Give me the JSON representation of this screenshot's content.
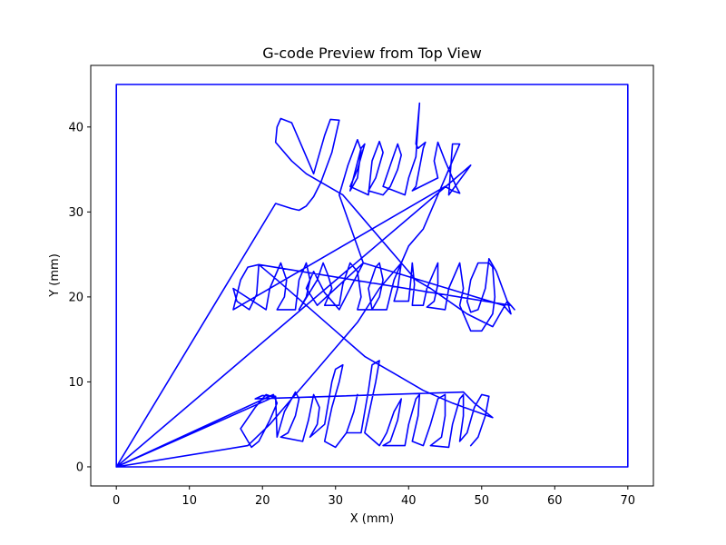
{
  "chart_data": {
    "type": "line",
    "title": "G-code Preview from Top View",
    "xlabel": "X (mm)",
    "ylabel": "Y (mm)",
    "xlim": [
      -3.5,
      73.5
    ],
    "ylim": [
      -2.25,
      47.25
    ],
    "xticks": [
      0,
      10,
      20,
      30,
      40,
      50,
      60,
      70
    ],
    "yticks": [
      0,
      10,
      20,
      30,
      40
    ],
    "grid": false,
    "colors": {
      "line": "#0000ff",
      "frame": "#000000"
    },
    "series": [
      {
        "points": [
          [
            0,
            0
          ],
          [
            0,
            45
          ],
          [
            70,
            45
          ],
          [
            70,
            0
          ],
          [
            0,
            0
          ],
          [
            21.5,
            8.2
          ],
          [
            20.5,
            8.5
          ],
          [
            19,
            7
          ],
          [
            17,
            4.5
          ],
          [
            18.5,
            2.3
          ],
          [
            19.5,
            3
          ],
          [
            21,
            5.5
          ],
          [
            22,
            7.5
          ],
          [
            21.5,
            8.5
          ],
          [
            0,
            0
          ],
          [
            48.5,
            35.5
          ],
          [
            45.5,
            32
          ],
          [
            46,
            38
          ],
          [
            47,
            38
          ],
          [
            45,
            34
          ],
          [
            42,
            28
          ],
          [
            40,
            26
          ],
          [
            39,
            24
          ],
          [
            36,
            21
          ],
          [
            33,
            17
          ],
          [
            30,
            14
          ],
          [
            27,
            11
          ],
          [
            24,
            8
          ],
          [
            21,
            5
          ],
          [
            18,
            2.5
          ],
          [
            0,
            0
          ],
          [
            21.8,
            31
          ],
          [
            24,
            30.4
          ],
          [
            25,
            30.2
          ],
          [
            26,
            30.7
          ],
          [
            27,
            31.8
          ],
          [
            28,
            33.5
          ],
          [
            29.5,
            37
          ],
          [
            30.5,
            40.8
          ],
          [
            29.3,
            40.9
          ],
          [
            28.5,
            39
          ],
          [
            27,
            34.5
          ],
          [
            26.5,
            35.5
          ],
          [
            25,
            38.5
          ],
          [
            24,
            40.5
          ],
          [
            22.5,
            41
          ],
          [
            22,
            40
          ],
          [
            21.8,
            38.2
          ],
          [
            24,
            36
          ],
          [
            26,
            34.5
          ],
          [
            31,
            32
          ],
          [
            33,
            30
          ],
          [
            35,
            28
          ],
          [
            37,
            26
          ],
          [
            39,
            24
          ],
          [
            41,
            22
          ],
          [
            43,
            21
          ],
          [
            48,
            18
          ],
          [
            51.5,
            16.5
          ],
          [
            53.5,
            19.5
          ],
          [
            54,
            18
          ],
          [
            53,
            19
          ],
          [
            33.8,
            24
          ],
          [
            30.5,
            18.5
          ],
          [
            28.5,
            20.5
          ],
          [
            27,
            23
          ],
          [
            26,
            21
          ],
          [
            27.5,
            19
          ],
          [
            33.8,
            24
          ],
          [
            30.5,
            32
          ],
          [
            31.7,
            35.5
          ],
          [
            33,
            38.5
          ],
          [
            33.5,
            37.3
          ],
          [
            33,
            34
          ],
          [
            32,
            32.5
          ],
          [
            33.5,
            37.5
          ],
          [
            34,
            38
          ],
          [
            33,
            35
          ],
          [
            32,
            33
          ],
          [
            34.5,
            32
          ],
          [
            35,
            36
          ],
          [
            36,
            38.3
          ],
          [
            36.5,
            37
          ],
          [
            35.5,
            34
          ],
          [
            34.5,
            32.5
          ],
          [
            36.5,
            32
          ],
          [
            37.5,
            33
          ],
          [
            38.5,
            35
          ],
          [
            39,
            36.7
          ],
          [
            38.5,
            38
          ],
          [
            37.5,
            35.5
          ],
          [
            36.5,
            33
          ],
          [
            39.5,
            32
          ],
          [
            40,
            34
          ],
          [
            41,
            36.5
          ],
          [
            41.5,
            42.8
          ],
          [
            41,
            38
          ],
          [
            41.3,
            37.5
          ],
          [
            42.3,
            38.2
          ],
          [
            42,
            37.5
          ],
          [
            41,
            33
          ],
          [
            40.5,
            32.5
          ],
          [
            44,
            34
          ],
          [
            43.5,
            36
          ],
          [
            44,
            38.2
          ],
          [
            45,
            36
          ],
          [
            46,
            34
          ],
          [
            46.5,
            33
          ],
          [
            47,
            32.2
          ],
          [
            46,
            32.5
          ],
          [
            45,
            33
          ],
          [
            16,
            18.5
          ],
          [
            17,
            22
          ],
          [
            18,
            23.5
          ],
          [
            19.5,
            23.8
          ],
          [
            19.2,
            20.3
          ],
          [
            18.2,
            18.5
          ],
          [
            16.5,
            19.5
          ],
          [
            16,
            21
          ],
          [
            20.5,
            18.5
          ],
          [
            21,
            21
          ],
          [
            22.5,
            24
          ],
          [
            23.3,
            22
          ],
          [
            23,
            20
          ],
          [
            22,
            18.5
          ],
          [
            24.5,
            18.5
          ],
          [
            25,
            22
          ],
          [
            26,
            24
          ],
          [
            26.5,
            22
          ],
          [
            26,
            20
          ],
          [
            25,
            18.5
          ],
          [
            27.5,
            22
          ],
          [
            28.3,
            24
          ],
          [
            29,
            22.5
          ],
          [
            29.5,
            21
          ],
          [
            28.5,
            19
          ],
          [
            30.5,
            19
          ],
          [
            31,
            21.5
          ],
          [
            32,
            24
          ],
          [
            33,
            23
          ],
          [
            33.5,
            20
          ],
          [
            33,
            18.5
          ],
          [
            35,
            18.5
          ],
          [
            34.5,
            21
          ],
          [
            35.5,
            23.5
          ],
          [
            36,
            24
          ],
          [
            36.5,
            22
          ],
          [
            36,
            20
          ],
          [
            35,
            18.5
          ],
          [
            37,
            18.5
          ],
          [
            38,
            22
          ],
          [
            39,
            24
          ],
          [
            38.5,
            21
          ],
          [
            38,
            19.5
          ],
          [
            40,
            19.5
          ],
          [
            40.3,
            22
          ],
          [
            40.5,
            24
          ],
          [
            40.8,
            21.5
          ],
          [
            40.5,
            19
          ],
          [
            42,
            19
          ],
          [
            42.5,
            21
          ],
          [
            43.5,
            23
          ],
          [
            44,
            24
          ],
          [
            44,
            21.5
          ],
          [
            43.5,
            19.5
          ],
          [
            42.5,
            18.8
          ],
          [
            45,
            18.5
          ],
          [
            45.5,
            21
          ],
          [
            47,
            24
          ],
          [
            47.5,
            21
          ],
          [
            47,
            19
          ],
          [
            48.5,
            16
          ],
          [
            50,
            16
          ],
          [
            51.5,
            18
          ],
          [
            51.8,
            20
          ],
          [
            51.5,
            23.5
          ],
          [
            51,
            24
          ],
          [
            49.5,
            24
          ],
          [
            48.5,
            22
          ],
          [
            48,
            19.5
          ],
          [
            48.5,
            18.2
          ],
          [
            49.5,
            18.5
          ],
          [
            50.5,
            21
          ],
          [
            51,
            24.5
          ],
          [
            52,
            23
          ],
          [
            53.5,
            19.5
          ],
          [
            54.5,
            18.5
          ],
          [
            54,
            19
          ],
          [
            19.5,
            23.8
          ],
          [
            22,
            22
          ],
          [
            26,
            19
          ],
          [
            30,
            16
          ],
          [
            34,
            13
          ],
          [
            38,
            11
          ],
          [
            42,
            9
          ],
          [
            46,
            7.5
          ],
          [
            51.5,
            5.8
          ],
          [
            49,
            7.5
          ],
          [
            47.5,
            8.8
          ],
          [
            19,
            8
          ],
          [
            20,
            8.4
          ],
          [
            21.8,
            8.3
          ],
          [
            22,
            3.5
          ],
          [
            23,
            6.5
          ],
          [
            24.5,
            8.8
          ],
          [
            25,
            8
          ],
          [
            24.5,
            6
          ],
          [
            23.5,
            4
          ],
          [
            22.5,
            3.5
          ],
          [
            25.5,
            3
          ],
          [
            26.3,
            5.5
          ],
          [
            27,
            8.5
          ],
          [
            27.8,
            7
          ],
          [
            27.5,
            5
          ],
          [
            26.5,
            3.5
          ],
          [
            28.5,
            5
          ],
          [
            29.5,
            10
          ],
          [
            30,
            11.5
          ],
          [
            31,
            12
          ],
          [
            30.5,
            10
          ],
          [
            29.5,
            7
          ],
          [
            28.5,
            3
          ],
          [
            30,
            2.3
          ],
          [
            31.5,
            4
          ],
          [
            32.5,
            6.5
          ],
          [
            33,
            8.5
          ],
          [
            32.5,
            6.5
          ],
          [
            31.5,
            4
          ],
          [
            33.5,
            4
          ],
          [
            34.5,
            9
          ],
          [
            35,
            12
          ],
          [
            36,
            12.5
          ],
          [
            35.5,
            10
          ],
          [
            34.5,
            6
          ],
          [
            34,
            4
          ],
          [
            36,
            2.5
          ],
          [
            37,
            4
          ],
          [
            38,
            6.5
          ],
          [
            39,
            8
          ],
          [
            38.5,
            5.5
          ],
          [
            37.5,
            3
          ],
          [
            36.5,
            2.5
          ],
          [
            39.5,
            2.5
          ],
          [
            40,
            5
          ],
          [
            41,
            8
          ],
          [
            41.5,
            8.5
          ],
          [
            41.3,
            6
          ],
          [
            40.5,
            3
          ],
          [
            42,
            2.5
          ],
          [
            43,
            5
          ],
          [
            44,
            8
          ],
          [
            45,
            8.5
          ],
          [
            45,
            6
          ],
          [
            44.5,
            3.5
          ],
          [
            43,
            2.5
          ],
          [
            45.5,
            2.3
          ],
          [
            46,
            5
          ],
          [
            47,
            8
          ],
          [
            47.5,
            8.5
          ],
          [
            47.5,
            6
          ],
          [
            47,
            3
          ],
          [
            48,
            4
          ],
          [
            49,
            7
          ],
          [
            50,
            8.5
          ],
          [
            51,
            8.3
          ],
          [
            50.5,
            6
          ],
          [
            49.5,
            3.5
          ],
          [
            48.5,
            2.5
          ]
        ]
      }
    ]
  }
}
